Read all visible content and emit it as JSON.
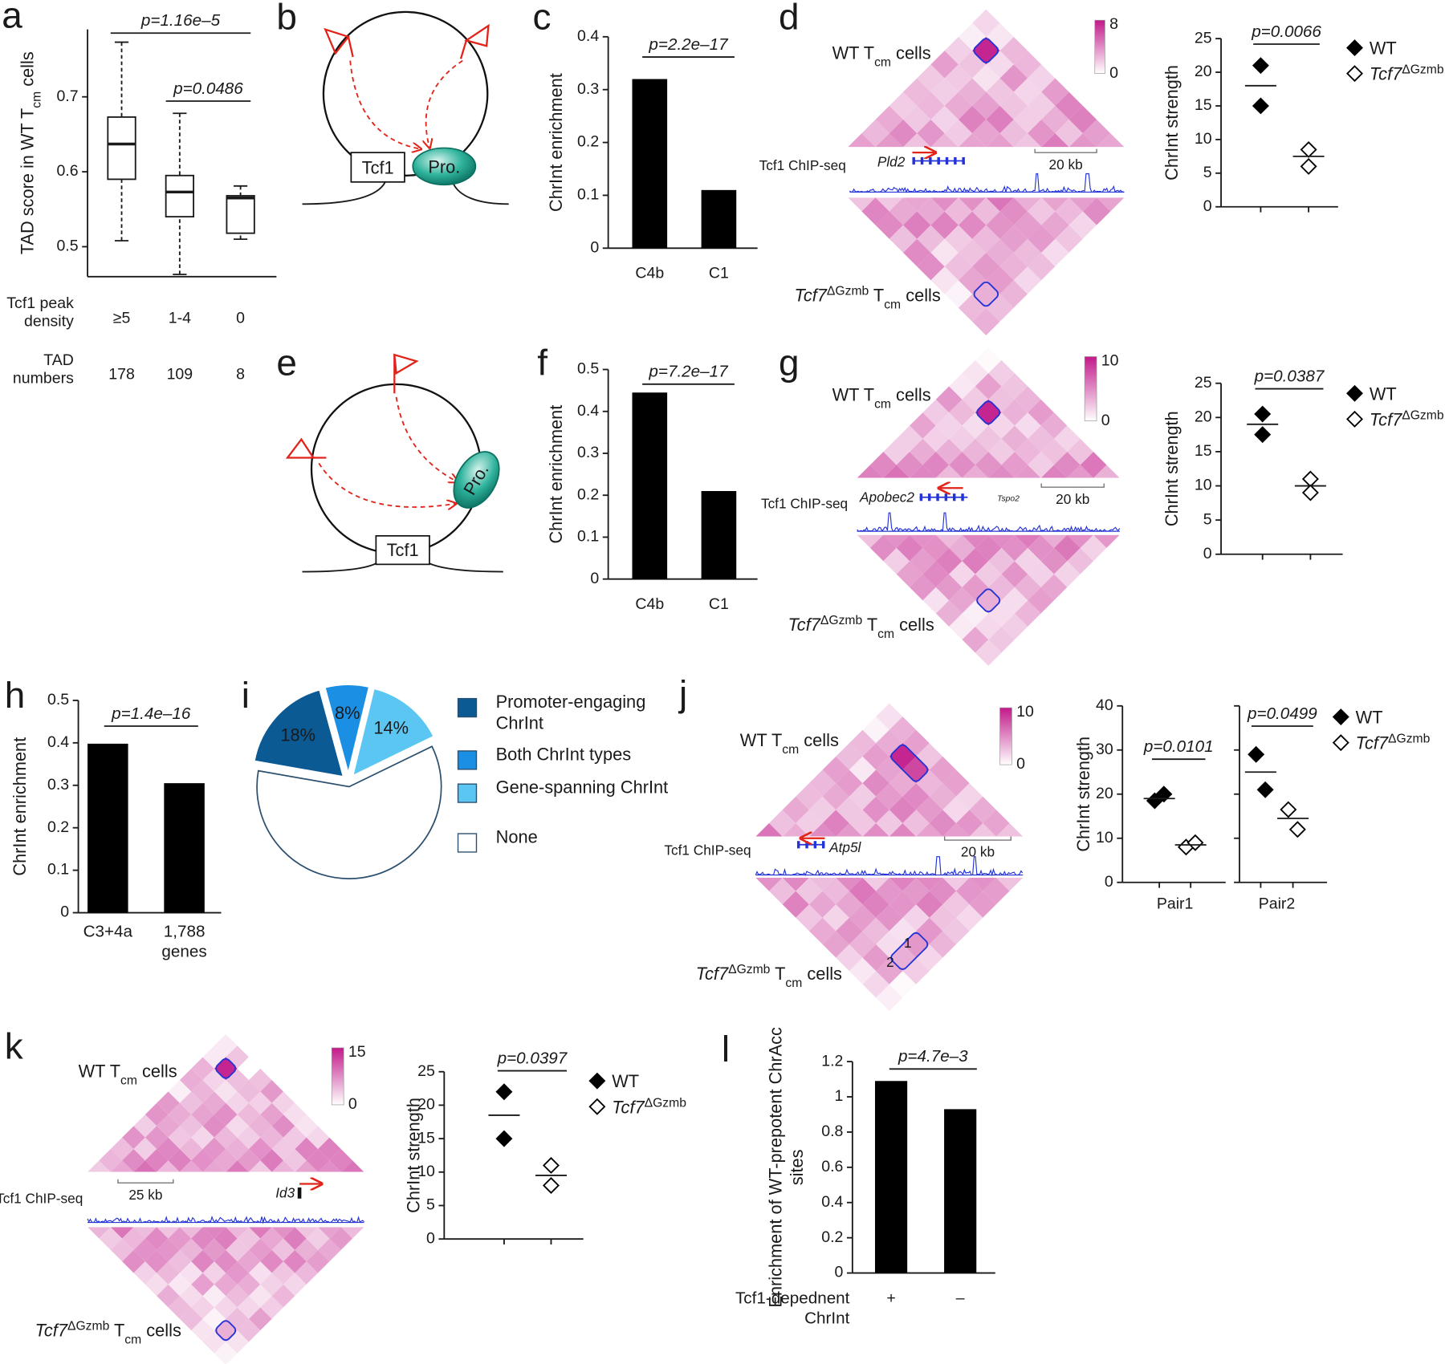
{
  "chart_data": [
    {
      "panel": "a",
      "type": "box",
      "ylabel": [
        {
          "text": "TAD score in WT T"
        },
        {
          "text": "cm",
          "sub": true
        },
        {
          "text": " cells"
        }
      ],
      "categories_label": "Tcf1 peak density",
      "categories": [
        "≥5",
        "1-4",
        "0"
      ],
      "boxes": [
        {
          "low": 0.508,
          "q1": 0.59,
          "median": 0.637,
          "q3": 0.673,
          "high": 0.773
        },
        {
          "low": 0.463,
          "q1": 0.54,
          "median": 0.573,
          "q3": 0.595,
          "high": 0.678
        },
        {
          "low": 0.51,
          "q1": 0.518,
          "median": 0.565,
          "q3": 0.568,
          "high": 0.581
        }
      ],
      "color": "#ffffff",
      "ylim": [
        0.46,
        0.79
      ],
      "yticks": [
        0.5,
        0.6,
        0.7
      ],
      "annotations": [
        "p=1.16e–5",
        "p=0.0486"
      ],
      "rows": [
        {
          "label": "TAD numbers",
          "values": [
            178,
            109,
            8
          ]
        }
      ]
    },
    {
      "panel": "c",
      "type": "bar",
      "ylabel": "ChrInt enrichment",
      "categories": [
        "C4b",
        "C1"
      ],
      "values": [
        0.32,
        0.11
      ],
      "color": "#000000",
      "ylim": [
        0,
        0.4
      ],
      "yticks": [
        0,
        0.1,
        0.2,
        0.3,
        0.4
      ],
      "annotations": [
        "p=2.2e–17"
      ]
    },
    {
      "panel": "f",
      "type": "bar",
      "ylabel": "ChrInt enrichment",
      "categories": [
        "C4b",
        "C1"
      ],
      "values": [
        0.445,
        0.21
      ],
      "color": "#000000",
      "ylim": [
        0,
        0.5
      ],
      "yticks": [
        0,
        0.1,
        0.2,
        0.3,
        0.4,
        0.5
      ],
      "annotations": [
        "p=7.2e–17"
      ]
    },
    {
      "panel": "h",
      "type": "bar",
      "ylabel": "ChrInt enrichment",
      "categories": [
        "C3+4a",
        "1,788 genes"
      ],
      "values": [
        0.398,
        0.305
      ],
      "color": "#000000",
      "ylim": [
        0,
        0.5
      ],
      "yticks": [
        0,
        0.1,
        0.2,
        0.3,
        0.4,
        0.5
      ],
      "annotations": [
        "p=1.4e–16"
      ]
    },
    {
      "panel": "l",
      "type": "bar",
      "ylabel": "Enrichment of WT-prepotent ChrAcc sites",
      "categories_label": "Tcf1-depednent ChrInt",
      "categories": [
        "+",
        "–"
      ],
      "values": [
        1.09,
        0.93
      ],
      "color": "#000000",
      "ylim": [
        0,
        1.2
      ],
      "yticks": [
        0,
        0.2,
        0.4,
        0.6,
        0.8,
        1,
        1.2
      ],
      "annotations": [
        "p=4.7e–3"
      ]
    },
    {
      "panel": "d",
      "type": "dot",
      "ylabel": "ChrInt strength",
      "ylim": [
        0,
        25
      ],
      "yticks": [
        0,
        5,
        10,
        15,
        20,
        25
      ],
      "annotations": [
        "p=0.0066"
      ],
      "series": [
        {
          "name": [
            {
              "text": "WT"
            }
          ],
          "color": "#000000",
          "filled": true,
          "values": [
            [
              21,
              15
            ]
          ],
          "means": [
            18
          ]
        },
        {
          "name": [
            {
              "text": "Tcf7",
              "italic": true
            },
            {
              "text": "ΔGzmb",
              "sup": true
            }
          ],
          "color": "#000000",
          "filled": false,
          "values": [
            [
              8.5,
              6
            ]
          ],
          "means": [
            7.5
          ]
        }
      ]
    },
    {
      "panel": "g",
      "type": "dot",
      "ylabel": "ChrInt strength",
      "ylim": [
        0,
        25
      ],
      "yticks": [
        0,
        5,
        10,
        15,
        20,
        25
      ],
      "annotations": [
        "p=0.0387"
      ],
      "series": [
        {
          "name": [
            {
              "text": "WT"
            }
          ],
          "color": "#000000",
          "filled": true,
          "values": [
            [
              20.5,
              17.5
            ]
          ],
          "means": [
            19
          ]
        },
        {
          "name": [
            {
              "text": "Tcf7",
              "italic": true
            },
            {
              "text": "ΔGzmb",
              "sup": true
            }
          ],
          "color": "#000000",
          "filled": false,
          "values": [
            [
              11,
              9
            ]
          ],
          "means": [
            10
          ]
        }
      ]
    },
    {
      "panel": "j",
      "type": "dot",
      "ylabel": "ChrInt strength",
      "categories": [
        "Pair1",
        "Pair2"
      ],
      "ylim": [
        0,
        40
      ],
      "yticks": [
        0,
        10,
        20,
        30,
        40
      ],
      "annotations": [
        "p=0.0101",
        "p=0.0499"
      ],
      "series": [
        {
          "name": [
            {
              "text": "WT"
            }
          ],
          "color": "#000000",
          "filled": true,
          "values": [
            [
              18.5,
              20
            ],
            [
              29,
              21
            ]
          ],
          "means": [
            19,
            25
          ]
        },
        {
          "name": [
            {
              "text": "Tcf7",
              "italic": true
            },
            {
              "text": "ΔGzmb",
              "sup": true
            }
          ],
          "color": "#000000",
          "filled": false,
          "values": [
            [
              8,
              9
            ],
            [
              16.5,
              12
            ]
          ],
          "means": [
            8.5,
            14.5
          ]
        }
      ]
    },
    {
      "panel": "k",
      "type": "dot",
      "ylabel": "ChrInt strength",
      "ylim": [
        0,
        25
      ],
      "yticks": [
        0,
        5,
        10,
        15,
        20,
        25
      ],
      "annotations": [
        "p=0.0397"
      ],
      "series": [
        {
          "name": [
            {
              "text": "WT"
            }
          ],
          "color": "#000000",
          "filled": true,
          "values": [
            [
              22,
              15
            ]
          ],
          "means": [
            18.5
          ]
        },
        {
          "name": [
            {
              "text": "Tcf7",
              "italic": true
            },
            {
              "text": "ΔGzmb",
              "sup": true
            }
          ],
          "color": "#000000",
          "filled": false,
          "values": [
            [
              11,
              8
            ]
          ],
          "means": [
            9.5
          ]
        }
      ]
    },
    {
      "panel": "i",
      "type": "pie",
      "categories": [
        "Promoter-engaging ChrInt",
        "Both ChrInt types",
        "Gene-spanning ChrInt",
        "None"
      ],
      "values": [
        18,
        8,
        14,
        60
      ],
      "value_labels": [
        "18%",
        "8%",
        "14%",
        null
      ],
      "colors": [
        "#0b5a94",
        "#1a8fe3",
        "#5cc6f2",
        "#ffffff"
      ]
    }
  ],
  "diagrams": [
    {
      "panel": "b",
      "box": "Tcf1",
      "ellipse": "Pro."
    },
    {
      "panel": "e",
      "box": "Tcf1",
      "ellipse": "Pro."
    }
  ],
  "hic": [
    {
      "wt_label": [
        {
          "text": "WT T"
        },
        {
          "text": "cm",
          "sub": true
        },
        {
          "text": " cells"
        }
      ],
      "ko_label": [
        {
          "text": "Tcf7",
          "italic": true
        },
        {
          "text": "ΔGzmb",
          "sup": true
        },
        {
          "text": " T"
        },
        {
          "text": "cm",
          "sub": true
        },
        {
          "text": " cells"
        }
      ],
      "colorbar": {
        "max": 8,
        "min": 0
      },
      "genes": [
        "Pld2"
      ],
      "scale_bar": "20 kb",
      "track_label": "Tcf1 ChIP-seq"
    },
    {
      "wt_label": [
        {
          "text": "WT T"
        },
        {
          "text": "cm",
          "sub": true
        },
        {
          "text": " cells"
        }
      ],
      "ko_label": [
        {
          "text": "Tcf7",
          "italic": true
        },
        {
          "text": "ΔGzmb",
          "sup": true
        },
        {
          "text": " T"
        },
        {
          "text": "cm",
          "sub": true
        },
        {
          "text": " cells"
        }
      ],
      "colorbar": {
        "max": 10,
        "min": 0
      },
      "genes": [
        "Apobec2",
        "Tspo2"
      ],
      "scale_bar": "20 kb",
      "track_label": "Tcf1 ChIP-seq"
    },
    {
      "wt_label": [
        {
          "text": "WT T"
        },
        {
          "text": "cm",
          "sub": true
        },
        {
          "text": " cells"
        }
      ],
      "ko_label": [
        {
          "text": "Tcf7",
          "italic": true
        },
        {
          "text": "ΔGzmb",
          "sup": true
        },
        {
          "text": " T"
        },
        {
          "text": "cm",
          "sub": true
        },
        {
          "text": " cells"
        }
      ],
      "colorbar": {
        "max": 10,
        "min": 0
      },
      "genes": [
        "Atp5l"
      ],
      "scale_bar": "20 kb",
      "track_label": "Tcf1 ChIP-seq",
      "box_labels": [
        "1",
        "2"
      ]
    },
    {
      "wt_label": [
        {
          "text": "WT T"
        },
        {
          "text": "cm",
          "sub": true
        },
        {
          "text": " cells"
        }
      ],
      "ko_label": [
        {
          "text": "Tcf7",
          "italic": true
        },
        {
          "text": "ΔGzmb",
          "sup": true
        },
        {
          "text": " T"
        },
        {
          "text": "cm",
          "sub": true
        },
        {
          "text": " cells"
        }
      ],
      "colorbar": {
        "max": 15,
        "min": 0
      },
      "genes": [
        "Id3"
      ],
      "scale_bar": "25 kb",
      "track_label": "Tcf1 ChIP-seq"
    }
  ]
}
